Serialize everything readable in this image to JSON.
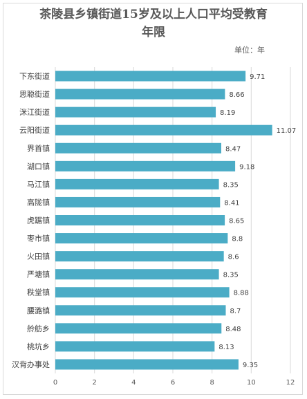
{
  "chart_data": {
    "type": "bar",
    "orientation": "horizontal",
    "title_line1": "茶陵县乡镇街道15岁及以上人口平均受教育",
    "title_line2": "年限",
    "unit_label": "单位：年",
    "categories": [
      "下东街道",
      "思聪街道",
      "洣江街道",
      "云阳街道",
      "界首镇",
      "湖口镇",
      "马江镇",
      "高陇镇",
      "虎踞镇",
      "枣市镇",
      "火田镇",
      "严塘镇",
      "秩堂镇",
      "腰潞镇",
      "舲舫乡",
      "桃坑乡",
      "汉背办事处"
    ],
    "values": [
      9.71,
      8.66,
      8.19,
      11.07,
      8.47,
      9.18,
      8.35,
      8.41,
      8.65,
      8.8,
      8.6,
      8.35,
      8.88,
      8.7,
      8.48,
      8.13,
      9.35
    ],
    "value_labels": [
      "9.71",
      "8.66",
      "8.19",
      "11.07",
      "8.47",
      "9.18",
      "8.35",
      "8.41",
      "8.65",
      "8.8",
      "8.6",
      "8.35",
      "8.88",
      "8.7",
      "8.48",
      "8.13",
      "9.35"
    ],
    "xlim": [
      0,
      12
    ],
    "xticks": [
      "0",
      "2",
      "4",
      "6",
      "8",
      "10",
      "12"
    ],
    "grid": true,
    "bar_color": "#4bacc6",
    "grid_color": "#d9d9d9"
  }
}
